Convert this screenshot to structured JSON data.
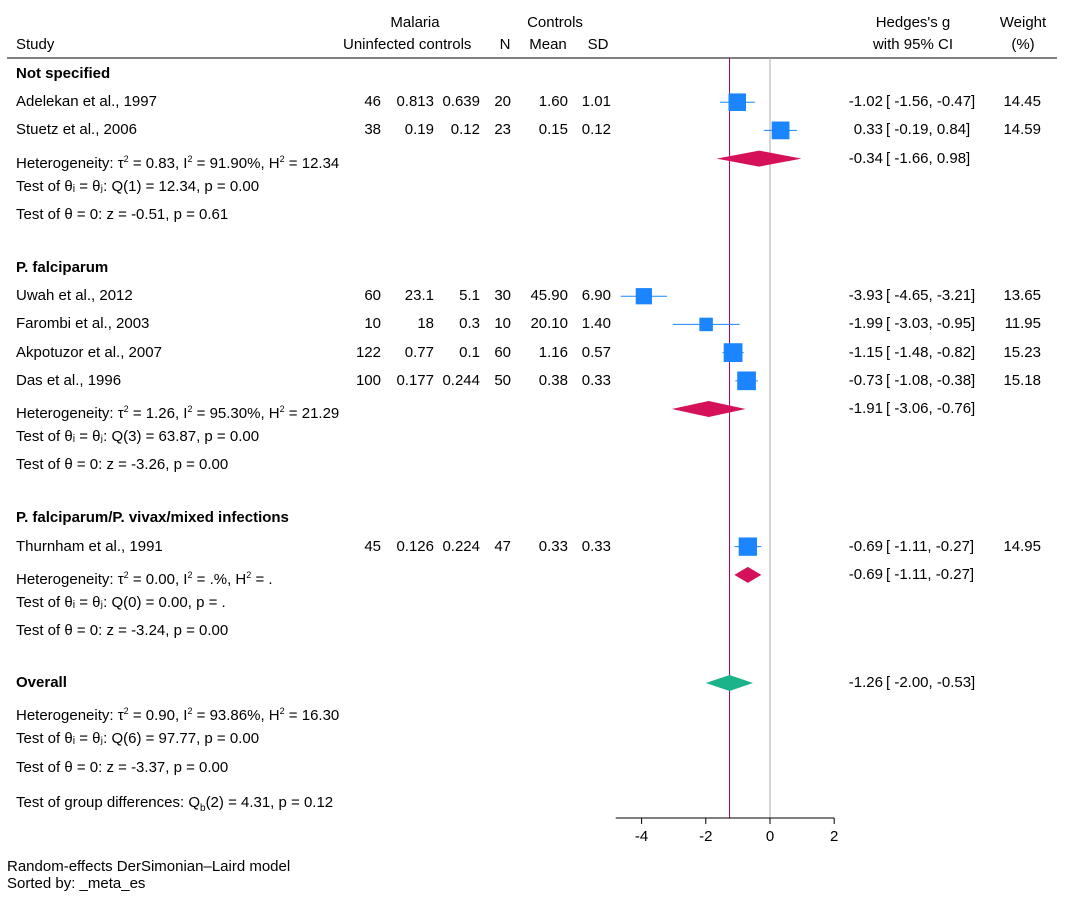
{
  "header": {
    "malaria": "Malaria",
    "controls": "Controls",
    "study": "Study",
    "uninfected_controls": "Uninfected controls",
    "n": "N",
    "mean": "Mean",
    "sd": "SD",
    "hedges": "Hedges's g",
    "ci": "with 95% CI",
    "weight": "Weight",
    "pct": "(%)"
  },
  "chart_data": {
    "type": "forest",
    "xlim": [
      -4.9,
      2.0
    ],
    "xticks": [
      -4,
      -2,
      0,
      2
    ],
    "xticklabels": [
      "-4",
      "-2",
      "0",
      "2"
    ],
    "null_line": 0,
    "overall_line": -1.26,
    "groups": [
      {
        "title": "Not specified",
        "studies": [
          {
            "name": "Adelekan et al., 1997",
            "n1": "46",
            "m1": "0.813",
            "sd1": "0.639",
            "n2": "20",
            "m2": "1.60",
            "sd2": "1.01",
            "g": -1.02,
            "lo": -1.56,
            "hi": -0.47,
            "es": "-1.02",
            "ci": "[ -1.56,  -0.47]",
            "weight": "14.45",
            "w": 14.45
          },
          {
            "name": "Stuetz et al., 2006",
            "n1": "38",
            "m1": "0.19",
            "sd1": "0.12",
            "n2": "23",
            "m2": "0.15",
            "sd2": "0.12",
            "g": 0.33,
            "lo": -0.19,
            "hi": 0.84,
            "es": "0.33",
            "ci": "[ -0.19,   0.84]",
            "weight": "14.59",
            "w": 14.59
          }
        ],
        "het": "Heterogeneity: τ² = 0.83, I² = 91.90%, H² = 12.34",
        "pooled": {
          "g": -0.34,
          "lo": -1.66,
          "hi": 0.98,
          "es": "-0.34",
          "ci": "[ -1.66,   0.98]"
        },
        "test_q": "Test of θᵢ = θⱼ: Q(1) = 12.34, p = 0.00",
        "test_z": "Test of θ = 0: z = -0.51, p = 0.61"
      },
      {
        "title": "P. falciparum",
        "studies": [
          {
            "name": "Uwah et al., 2012",
            "n1": "60",
            "m1": "23.1",
            "sd1": "5.1",
            "n2": "30",
            "m2": "45.90",
            "sd2": "6.90",
            "g": -3.93,
            "lo": -4.65,
            "hi": -3.21,
            "es": "-3.93",
            "ci": "[ -4.65,  -3.21]",
            "weight": "13.65",
            "w": 13.65
          },
          {
            "name": "Farombi et al., 2003",
            "n1": "10",
            "m1": "18",
            "sd1": "0.3",
            "n2": "10",
            "m2": "20.10",
            "sd2": "1.40",
            "g": -1.99,
            "lo": -3.03,
            "hi": -0.95,
            "es": "-1.99",
            "ci": "[ -3.03,  -0.95]",
            "weight": "11.95",
            "w": 11.95
          },
          {
            "name": "Akpotuzor et al., 2007",
            "n1": "122",
            "m1": "0.77",
            "sd1": "0.1",
            "n2": "60",
            "m2": "1.16",
            "sd2": "0.57",
            "g": -1.15,
            "lo": -1.48,
            "hi": -0.82,
            "es": "-1.15",
            "ci": "[ -1.48,  -0.82]",
            "weight": "15.23",
            "w": 15.23
          },
          {
            "name": "Das et al., 1996",
            "n1": "100",
            "m1": "0.177",
            "sd1": "0.244",
            "n2": "50",
            "m2": "0.38",
            "sd2": "0.33",
            "g": -0.73,
            "lo": -1.08,
            "hi": -0.38,
            "es": "-0.73",
            "ci": "[ -1.08,  -0.38]",
            "weight": "15.18",
            "w": 15.18
          }
        ],
        "het": "Heterogeneity: τ² = 1.26, I² = 95.30%, H² = 21.29",
        "pooled": {
          "g": -1.91,
          "lo": -3.06,
          "hi": -0.76,
          "es": "-1.91",
          "ci": "[ -3.06,  -0.76]"
        },
        "test_q": "Test of θᵢ = θⱼ: Q(3) = 63.87, p = 0.00",
        "test_z": "Test of θ = 0: z = -3.26, p = 0.00"
      },
      {
        "title": "P. falciparum/P. vivax/mixed infections",
        "studies": [
          {
            "name": "Thurnham et al., 1991",
            "n1": "45",
            "m1": "0.126",
            "sd1": "0.224",
            "n2": "47",
            "m2": "0.33",
            "sd2": "0.33",
            "g": -0.69,
            "lo": -1.11,
            "hi": -0.27,
            "es": "-0.69",
            "ci": "[ -1.11,  -0.27]",
            "weight": "14.95",
            "w": 14.95
          }
        ],
        "het": "Heterogeneity: τ² = 0.00, I² = .%, H² = .",
        "pooled": {
          "g": -0.69,
          "lo": -1.11,
          "hi": -0.27,
          "es": "-0.69",
          "ci": "[ -1.11,  -0.27]"
        },
        "test_q": "Test of θᵢ = θⱼ: Q(0) = 0.00, p = .",
        "test_z": "Test of θ = 0: z = -3.24, p = 0.00"
      }
    ],
    "overall": {
      "title": "Overall",
      "g": -1.26,
      "lo": -2.0,
      "hi": -0.53,
      "es": "-1.26",
      "ci": "[ -2.00,  -0.53]",
      "het": "Heterogeneity: τ² = 0.90, I² = 93.86%, H² = 16.30",
      "test_q": "Test of θᵢ = θⱼ: Q(6) = 97.77, p = 0.00",
      "test_z": "Test of θ = 0: z = -3.37, p = 0.00",
      "test_groups": "Test of group differences: Q_b(2) = 4.31, p = 0.12"
    }
  },
  "colors": {
    "study_marker": "#1a85ff",
    "subgroup_diamond": "#d41159",
    "overall_diamond": "#1bb38a",
    "overall_line": "#a0005a",
    "null_line": "#a9a9a9",
    "separator": "#000000"
  },
  "footer": {
    "model": "Random-effects DerSimonian–Laird model",
    "sorted": "Sorted by: _meta_es"
  }
}
